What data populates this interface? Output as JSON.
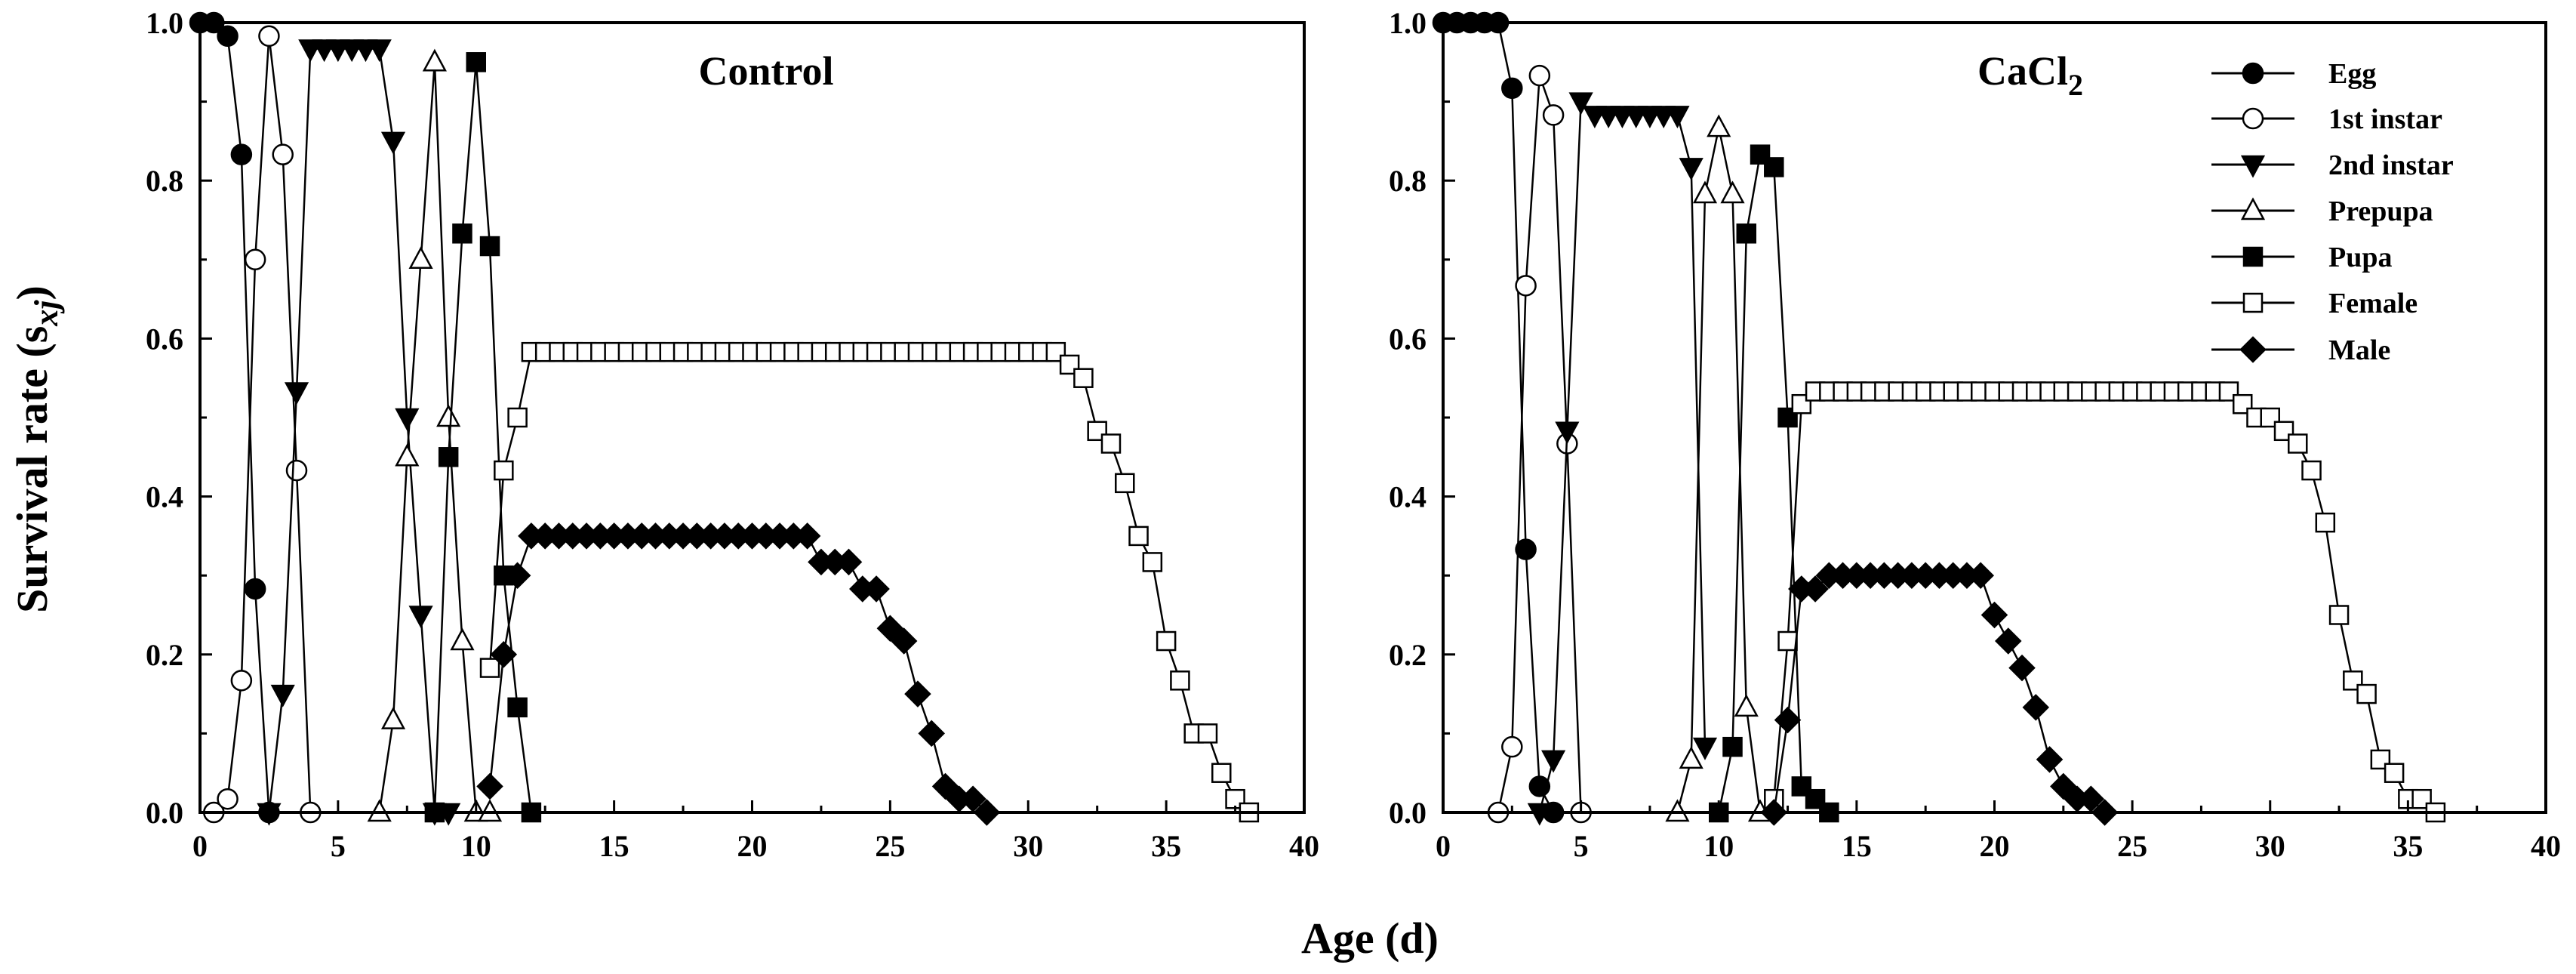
{
  "figure": {
    "xlabel": "Age (d)",
    "ylabel_main": "Survival rate (s",
    "ylabel_sub": "xj",
    "ylabel_close": ")"
  },
  "legend": {
    "placement": "top-right of right panel",
    "entries": [
      {
        "name": "Egg",
        "marker": "circle",
        "filled": true
      },
      {
        "name": "1st instar",
        "marker": "circle",
        "filled": false
      },
      {
        "name": "2nd instar",
        "marker": "triangle-down",
        "filled": true
      },
      {
        "name": "Prepupa",
        "marker": "triangle-up",
        "filled": false
      },
      {
        "name": "Pupa",
        "marker": "square",
        "filled": true
      },
      {
        "name": "Female",
        "marker": "square",
        "filled": false
      },
      {
        "name": "Male",
        "marker": "diamond",
        "filled": true
      }
    ]
  },
  "colors": {
    "line": "#000000",
    "open_fill": "#ffffff",
    "filled": "#000000"
  },
  "chart_data": [
    {
      "type": "line",
      "title": "Control",
      "title_sub": "",
      "xlabel": "Age (d)",
      "ylabel": "Survival rate (sxj)",
      "xlim": [
        0,
        40
      ],
      "ylim": [
        0,
        1.0
      ],
      "xticks": [
        0,
        5,
        10,
        15,
        20,
        25,
        30,
        35,
        40
      ],
      "yticks": [
        0.0,
        0.2,
        0.4,
        0.6,
        0.8,
        1.0
      ],
      "series": [
        {
          "name": "Egg",
          "x": [
            0,
            0.5,
            1,
            1.5,
            2,
            2.5
          ],
          "y": [
            1.0,
            1.0,
            0.983,
            0.833,
            0.283,
            0.0
          ]
        },
        {
          "name": "1st instar",
          "x": [
            0.5,
            1,
            1.5,
            2,
            2.5,
            3,
            3.5,
            4
          ],
          "y": [
            0.0,
            0.017,
            0.167,
            0.7,
            0.983,
            0.833,
            0.433,
            0.0
          ]
        },
        {
          "name": "2nd instar",
          "x": [
            2.5,
            3,
            3.5,
            4,
            4.5,
            5,
            5.5,
            6,
            6.5,
            7,
            7.5,
            8,
            8.5,
            9
          ],
          "y": [
            0.0,
            0.15,
            0.533,
            0.967,
            0.967,
            0.967,
            0.967,
            0.967,
            0.967,
            0.85,
            0.5,
            0.25,
            0.0,
            0.0
          ]
        },
        {
          "name": "Prepupa",
          "x": [
            6.5,
            7,
            7.5,
            8,
            8.5,
            9,
            9.5,
            10,
            10.5
          ],
          "y": [
            0.0,
            0.117,
            0.45,
            0.7,
            0.95,
            0.5,
            0.217,
            0.0,
            0.0
          ]
        },
        {
          "name": "Pupa",
          "x": [
            8.5,
            9,
            9.5,
            10,
            10.5,
            11,
            11.5,
            12
          ],
          "y": [
            0.0,
            0.45,
            0.733,
            0.95,
            0.717,
            0.3,
            0.133,
            0.0
          ]
        },
        {
          "name": "Female",
          "x": [
            10.5,
            11,
            11.5,
            12,
            12.5,
            13,
            13.5,
            14,
            14.5,
            15,
            15.5,
            16,
            16.5,
            17,
            17.5,
            18,
            18.5,
            19,
            19.5,
            20,
            20.5,
            21,
            21.5,
            22,
            22.5,
            23,
            23.5,
            24,
            24.5,
            25,
            25.5,
            26,
            26.5,
            27,
            27.5,
            28,
            28.5,
            29,
            29.5,
            30,
            30.5,
            31,
            31.5,
            32,
            32.5,
            33,
            33.5,
            34,
            34.5,
            35,
            35.5,
            36,
            36.5,
            37,
            37.5,
            38
          ],
          "y": [
            0.183,
            0.433,
            0.5,
            0.583,
            0.583,
            0.583,
            0.583,
            0.583,
            0.583,
            0.583,
            0.583,
            0.583,
            0.583,
            0.583,
            0.583,
            0.583,
            0.583,
            0.583,
            0.583,
            0.583,
            0.583,
            0.583,
            0.583,
            0.583,
            0.583,
            0.583,
            0.583,
            0.583,
            0.583,
            0.583,
            0.583,
            0.583,
            0.583,
            0.583,
            0.583,
            0.583,
            0.583,
            0.583,
            0.583,
            0.583,
            0.583,
            0.583,
            0.567,
            0.55,
            0.483,
            0.467,
            0.417,
            0.35,
            0.317,
            0.217,
            0.167,
            0.1,
            0.1,
            0.05,
            0.017,
            0.0
          ]
        },
        {
          "name": "Male",
          "x": [
            10.5,
            11,
            11.5,
            12,
            12.5,
            13,
            13.5,
            14,
            14.5,
            15,
            15.5,
            16,
            16.5,
            17,
            17.5,
            18,
            18.5,
            19,
            19.5,
            20,
            20.5,
            21,
            21.5,
            22,
            22.5,
            23,
            23.5,
            24,
            24.5,
            25,
            25.5,
            26,
            26.5,
            27,
            27.5,
            28,
            28.5
          ],
          "y": [
            0.033,
            0.2,
            0.3,
            0.35,
            0.35,
            0.35,
            0.35,
            0.35,
            0.35,
            0.35,
            0.35,
            0.35,
            0.35,
            0.35,
            0.35,
            0.35,
            0.35,
            0.35,
            0.35,
            0.35,
            0.35,
            0.35,
            0.35,
            0.35,
            0.317,
            0.317,
            0.317,
            0.283,
            0.283,
            0.233,
            0.217,
            0.15,
            0.1,
            0.033,
            0.017,
            0.017,
            0.0
          ]
        }
      ]
    },
    {
      "type": "line",
      "title": "CaCl",
      "title_sub": "2",
      "xlabel": "Age (d)",
      "ylabel": "Survival rate (sxj)",
      "xlim": [
        0,
        40
      ],
      "ylim": [
        0,
        1.0
      ],
      "xticks": [
        0,
        5,
        10,
        15,
        20,
        25,
        30,
        35,
        40
      ],
      "yticks": [
        0.0,
        0.2,
        0.4,
        0.6,
        0.8,
        1.0
      ],
      "series": [
        {
          "name": "Egg",
          "x": [
            0,
            0.5,
            1,
            1.5,
            2,
            2.5,
            3,
            3.5,
            4
          ],
          "y": [
            1.0,
            1.0,
            1.0,
            1.0,
            1.0,
            0.917,
            0.333,
            0.033,
            0.0
          ]
        },
        {
          "name": "1st instar",
          "x": [
            2,
            2.5,
            3,
            3.5,
            4,
            4.5,
            5
          ],
          "y": [
            0.0,
            0.083,
            0.667,
            0.933,
            0.883,
            0.467,
            0.0
          ]
        },
        {
          "name": "2nd instar",
          "x": [
            3.5,
            4,
            4.5,
            5,
            5.5,
            6,
            6.5,
            7,
            7.5,
            8,
            8.5,
            9,
            9.5
          ],
          "y": [
            0.0,
            0.067,
            0.483,
            0.9,
            0.883,
            0.883,
            0.883,
            0.883,
            0.883,
            0.883,
            0.883,
            0.817,
            0.083
          ]
        },
        {
          "name": "Prepupa",
          "x": [
            8.5,
            9,
            9.5,
            10,
            10.5,
            11,
            11.5
          ],
          "y": [
            0.0,
            0.067,
            0.783,
            0.867,
            0.783,
            0.133,
            0.0
          ]
        },
        {
          "name": "Pupa",
          "x": [
            10,
            10.5,
            11,
            11.5,
            12,
            12.5,
            13,
            13.5,
            14
          ],
          "y": [
            0.0,
            0.083,
            0.733,
            0.833,
            0.817,
            0.5,
            0.033,
            0.017,
            0.0
          ]
        },
        {
          "name": "Female",
          "x": [
            12,
            12.5,
            13,
            13.5,
            14,
            14.5,
            15,
            15.5,
            16,
            16.5,
            17,
            17.5,
            18,
            18.5,
            19,
            19.5,
            20,
            20.5,
            21,
            21.5,
            22,
            22.5,
            23,
            23.5,
            24,
            24.5,
            25,
            25.5,
            26,
            26.5,
            27,
            27.5,
            28,
            28.5,
            29,
            29.5,
            30,
            30.5,
            31,
            31.5,
            32,
            32.5,
            33,
            33.5,
            34,
            34.5,
            35,
            35.5,
            36
          ],
          "y": [
            0.017,
            0.217,
            0.517,
            0.533,
            0.533,
            0.533,
            0.533,
            0.533,
            0.533,
            0.533,
            0.533,
            0.533,
            0.533,
            0.533,
            0.533,
            0.533,
            0.533,
            0.533,
            0.533,
            0.533,
            0.533,
            0.533,
            0.533,
            0.533,
            0.533,
            0.533,
            0.533,
            0.533,
            0.533,
            0.533,
            0.533,
            0.533,
            0.533,
            0.533,
            0.517,
            0.5,
            0.5,
            0.483,
            0.467,
            0.433,
            0.367,
            0.25,
            0.167,
            0.15,
            0.067,
            0.05,
            0.017,
            0.017,
            0.0
          ]
        },
        {
          "name": "Male",
          "x": [
            12,
            12.5,
            13,
            13.5,
            14,
            14.5,
            15,
            15.5,
            16,
            16.5,
            17,
            17.5,
            18,
            18.5,
            19,
            19.5,
            20,
            20.5,
            21,
            21.5,
            22,
            22.5,
            23,
            23.5,
            24
          ],
          "y": [
            0.0,
            0.117,
            0.283,
            0.283,
            0.3,
            0.3,
            0.3,
            0.3,
            0.3,
            0.3,
            0.3,
            0.3,
            0.3,
            0.3,
            0.3,
            0.3,
            0.25,
            0.217,
            0.183,
            0.133,
            0.067,
            0.033,
            0.017,
            0.017,
            0.0
          ]
        }
      ]
    }
  ]
}
